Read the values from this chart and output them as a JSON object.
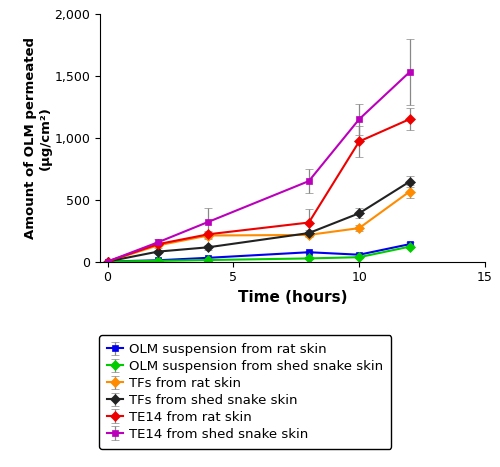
{
  "time": [
    0,
    2,
    4,
    8,
    10,
    12
  ],
  "series": [
    {
      "label": "OLM suspension from rat skin",
      "color": "#0000EE",
      "marker": "s",
      "values": [
        0,
        10,
        30,
        75,
        55,
        140
      ],
      "yerr": [
        0,
        5,
        8,
        10,
        10,
        18
      ]
    },
    {
      "label": "OLM suspension from shed snake skin",
      "color": "#00CC00",
      "marker": "D",
      "values": [
        0,
        5,
        12,
        25,
        35,
        120
      ],
      "yerr": [
        0,
        3,
        4,
        6,
        8,
        12
      ]
    },
    {
      "label": "TFs from rat skin",
      "color": "#FF8C00",
      "marker": "D",
      "values": [
        0,
        130,
        210,
        215,
        270,
        565
      ],
      "yerr": [
        0,
        18,
        25,
        20,
        25,
        55
      ]
    },
    {
      "label": "TFs from shed snake skin",
      "color": "#222222",
      "marker": "D",
      "values": [
        0,
        80,
        115,
        230,
        390,
        645
      ],
      "yerr": [
        0,
        12,
        18,
        22,
        40,
        45
      ]
    },
    {
      "label": "TE14 from rat skin",
      "color": "#EE0000",
      "marker": "D",
      "values": [
        0,
        140,
        220,
        315,
        970,
        1150
      ],
      "yerr": [
        0,
        18,
        28,
        110,
        125,
        90
      ]
    },
    {
      "label": "TE14 from shed snake skin",
      "color": "#BB00BB",
      "marker": "s",
      "values": [
        0,
        155,
        320,
        650,
        1150,
        1530
      ],
      "yerr": [
        0,
        28,
        115,
        95,
        125,
        265
      ]
    }
  ],
  "xlabel": "Time (hours)",
  "ylabel_top": "Amount of OLM permeated",
  "ylabel_bottom": "(μg/cm²)",
  "ylim": [
    0,
    2000
  ],
  "xlim": [
    -0.3,
    15
  ],
  "yticks": [
    0,
    500,
    1000,
    1500,
    2000
  ],
  "xticks": [
    0,
    5,
    10,
    15
  ],
  "legend_fontsize": 9.5
}
